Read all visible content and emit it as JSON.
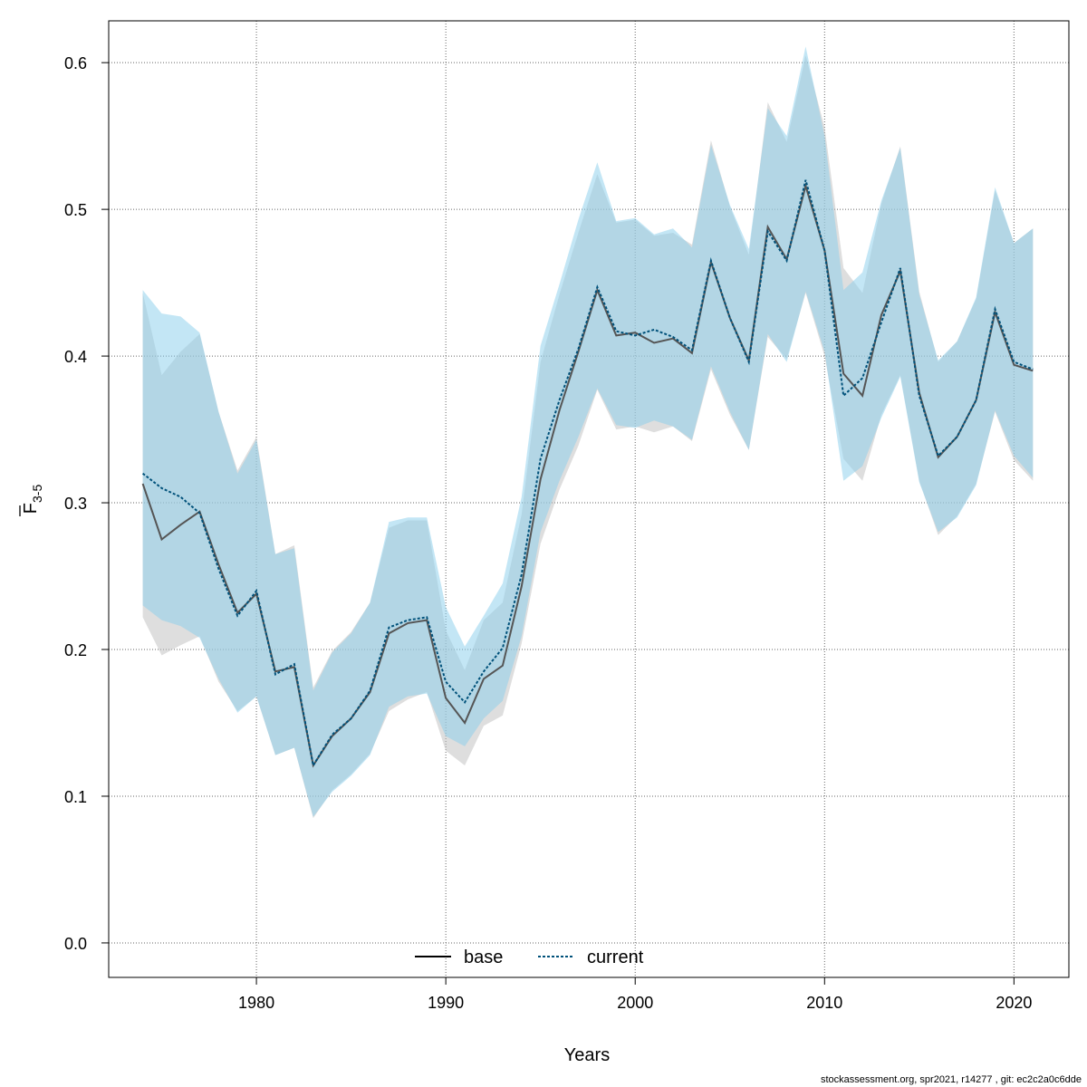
{
  "chart_data": {
    "type": "line",
    "xlabel": "Years",
    "ylabel_main": "F",
    "ylabel_sub": "3-5",
    "xlim": [
      1972.2,
      2022.9
    ],
    "ylim": [
      -0.0235,
      0.6285
    ],
    "xticks": [
      1980,
      1990,
      2000,
      2010,
      2020
    ],
    "yticks": [
      0.0,
      0.1,
      0.2,
      0.3,
      0.4,
      0.5,
      0.6
    ],
    "ytick_labels": [
      "0.0",
      "0.1",
      "0.2",
      "0.3",
      "0.4",
      "0.5",
      "0.6"
    ],
    "grid": true,
    "legend_position": "bottom-center",
    "x": [
      1974,
      1975,
      1976,
      1977,
      1978,
      1979,
      1980,
      1981,
      1982,
      1983,
      1984,
      1985,
      1986,
      1987,
      1988,
      1989,
      1990,
      1991,
      1992,
      1993,
      1994,
      1995,
      1996,
      1997,
      1998,
      1999,
      2000,
      2001,
      2002,
      2003,
      2004,
      2005,
      2006,
      2007,
      2008,
      2009,
      2010,
      2011,
      2012,
      2013,
      2014,
      2015,
      2016,
      2017,
      2018,
      2019,
      2020,
      2021
    ],
    "series": [
      {
        "name": "base",
        "color": "#555555",
        "band_color": "#bebebe",
        "values": [
          0.313,
          0.275,
          0.285,
          0.294,
          0.258,
          0.225,
          0.238,
          0.185,
          0.188,
          0.121,
          0.141,
          0.153,
          0.171,
          0.211,
          0.218,
          0.22,
          0.167,
          0.15,
          0.18,
          0.189,
          0.243,
          0.316,
          0.363,
          0.403,
          0.445,
          0.414,
          0.416,
          0.409,
          0.412,
          0.402,
          0.464,
          0.426,
          0.397,
          0.488,
          0.466,
          0.516,
          0.472,
          0.388,
          0.373,
          0.428,
          0.458,
          0.375,
          0.331,
          0.345,
          0.37,
          0.43,
          0.394,
          0.39
        ],
        "lower": [
          0.222,
          0.196,
          0.203,
          0.209,
          0.178,
          0.158,
          0.168,
          0.128,
          0.133,
          0.085,
          0.104,
          0.115,
          0.129,
          0.158,
          0.166,
          0.171,
          0.131,
          0.121,
          0.148,
          0.155,
          0.204,
          0.272,
          0.309,
          0.339,
          0.377,
          0.35,
          0.352,
          0.348,
          0.352,
          0.342,
          0.391,
          0.36,
          0.336,
          0.413,
          0.398,
          0.443,
          0.4,
          0.33,
          0.315,
          0.36,
          0.387,
          0.315,
          0.278,
          0.291,
          0.313,
          0.362,
          0.329,
          0.315
        ],
        "upper": [
          0.443,
          0.387,
          0.403,
          0.415,
          0.362,
          0.322,
          0.345,
          0.265,
          0.271,
          0.174,
          0.199,
          0.212,
          0.232,
          0.283,
          0.288,
          0.288,
          0.213,
          0.186,
          0.22,
          0.232,
          0.292,
          0.396,
          0.442,
          0.484,
          0.524,
          0.491,
          0.493,
          0.482,
          0.484,
          0.476,
          0.547,
          0.502,
          0.469,
          0.573,
          0.546,
          0.605,
          0.556,
          0.46,
          0.443,
          0.504,
          0.543,
          0.444,
          0.396,
          0.41,
          0.439,
          0.513,
          0.477,
          0.487
        ]
      },
      {
        "name": "current",
        "color": "#00517a",
        "band_color": "#87ceeb",
        "values": [
          0.32,
          0.31,
          0.304,
          0.293,
          0.255,
          0.223,
          0.24,
          0.183,
          0.19,
          0.121,
          0.142,
          0.153,
          0.172,
          0.215,
          0.22,
          0.222,
          0.178,
          0.164,
          0.185,
          0.201,
          0.251,
          0.33,
          0.37,
          0.405,
          0.447,
          0.417,
          0.414,
          0.418,
          0.413,
          0.404,
          0.465,
          0.426,
          0.396,
          0.485,
          0.465,
          0.52,
          0.472,
          0.373,
          0.385,
          0.423,
          0.46,
          0.373,
          0.332,
          0.345,
          0.37,
          0.432,
          0.396,
          0.391
        ],
        "lower": [
          0.23,
          0.22,
          0.216,
          0.208,
          0.18,
          0.157,
          0.168,
          0.128,
          0.133,
          0.086,
          0.103,
          0.114,
          0.128,
          0.161,
          0.168,
          0.17,
          0.141,
          0.134,
          0.153,
          0.165,
          0.209,
          0.28,
          0.315,
          0.345,
          0.378,
          0.353,
          0.351,
          0.356,
          0.352,
          0.343,
          0.393,
          0.362,
          0.336,
          0.415,
          0.396,
          0.444,
          0.403,
          0.315,
          0.325,
          0.358,
          0.386,
          0.314,
          0.28,
          0.29,
          0.312,
          0.363,
          0.332,
          0.317
        ],
        "upper": [
          0.445,
          0.429,
          0.427,
          0.416,
          0.362,
          0.32,
          0.343,
          0.265,
          0.269,
          0.172,
          0.198,
          0.211,
          0.232,
          0.287,
          0.29,
          0.29,
          0.229,
          0.202,
          0.223,
          0.245,
          0.304,
          0.407,
          0.449,
          0.493,
          0.532,
          0.492,
          0.494,
          0.483,
          0.487,
          0.474,
          0.544,
          0.503,
          0.473,
          0.569,
          0.55,
          0.611,
          0.55,
          0.445,
          0.457,
          0.506,
          0.542,
          0.442,
          0.397,
          0.41,
          0.44,
          0.515,
          0.477,
          0.487
        ]
      }
    ]
  },
  "footer_text": "stockassessment.org, spr2021, r14277 , git: ec2c2a0c6dde"
}
